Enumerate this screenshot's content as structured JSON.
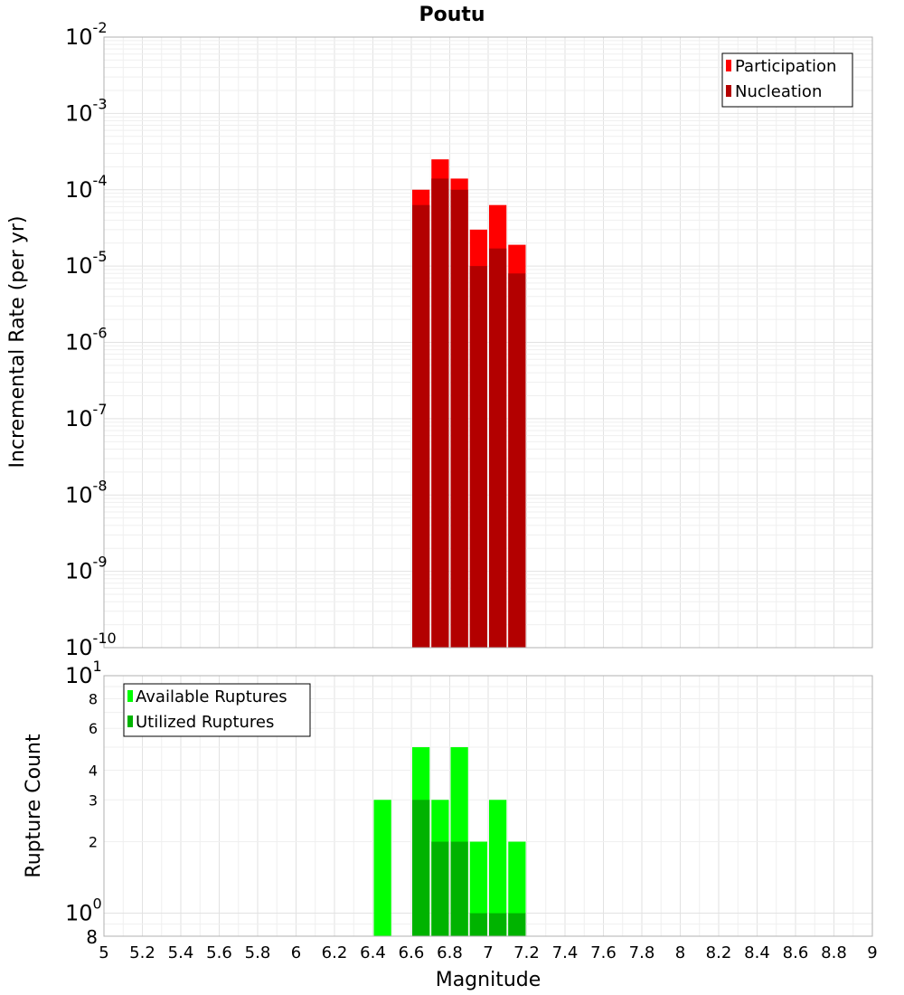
{
  "chart_data": [
    {
      "type": "bar",
      "panel": "top",
      "title": "Poutu",
      "xlabel": "",
      "ylabel": "Incremental Rate (per yr)",
      "yscale": "log",
      "xlim": [
        5,
        9
      ],
      "ylim": [
        1e-10,
        0.01
      ],
      "grid": true,
      "legend_position": "top-right",
      "bar_width": 0.1,
      "x": [
        6.65,
        6.75,
        6.85,
        6.95,
        7.05,
        7.15
      ],
      "series": [
        {
          "name": "Participation",
          "color": "#ff0000",
          "values": [
            0.0001,
            0.00025,
            0.00014,
            3e-05,
            6.3e-05,
            1.9e-05
          ]
        },
        {
          "name": "Nucleation",
          "color": "#b30000",
          "values": [
            6.3e-05,
            0.00014,
            0.0001,
            1e-05,
            1.7e-05,
            8e-06
          ]
        }
      ],
      "y_decade_ticks": [
        {
          "value": 0.01,
          "base": "10",
          "exp": "-2"
        },
        {
          "value": 0.001,
          "base": "10",
          "exp": "-3"
        },
        {
          "value": 0.0001,
          "base": "10",
          "exp": "-4"
        },
        {
          "value": 1e-05,
          "base": "10",
          "exp": "-5"
        },
        {
          "value": 1e-06,
          "base": "10",
          "exp": "-6"
        },
        {
          "value": 1e-07,
          "base": "10",
          "exp": "-7"
        },
        {
          "value": 1e-08,
          "base": "10",
          "exp": "-8"
        },
        {
          "value": 1e-09,
          "base": "10",
          "exp": "-9"
        },
        {
          "value": 1e-10,
          "base": "10",
          "exp": "-10"
        }
      ]
    },
    {
      "type": "bar",
      "panel": "bottom",
      "title": "",
      "xlabel": "Magnitude",
      "ylabel": "Rupture Count",
      "yscale": "log",
      "xlim": [
        5,
        9
      ],
      "ylim": [
        0.8,
        10
      ],
      "grid": true,
      "legend_position": "top-left",
      "bar_width": 0.1,
      "x_ticks": [
        "5",
        "5.2",
        "5.4",
        "5.6",
        "5.8",
        "6",
        "6.2",
        "6.4",
        "6.6",
        "6.8",
        "7",
        "7.2",
        "7.4",
        "7.6",
        "7.8",
        "8",
        "8.2",
        "8.4",
        "8.6",
        "8.8",
        "9"
      ],
      "series": [
        {
          "name": "Available Ruptures",
          "color": "#00ff00",
          "x": [
            6.45,
            6.65,
            6.75,
            6.85,
            6.95,
            7.05,
            7.15
          ],
          "values": [
            3,
            5,
            3,
            5,
            2,
            3,
            2
          ]
        },
        {
          "name": "Utilized Ruptures",
          "color": "#00b300",
          "x": [
            6.65,
            6.75,
            6.85,
            6.95,
            7.05,
            7.15
          ],
          "values": [
            3,
            2,
            2,
            1,
            1,
            1
          ]
        }
      ],
      "y_decade_ticks": [
        {
          "value": 10,
          "base": "10",
          "exp": "1"
        },
        {
          "value": 1,
          "base": "10",
          "exp": "0"
        }
      ],
      "y_minor_ticks": [
        {
          "value": 8,
          "label": "8"
        },
        {
          "value": 6,
          "label": "6"
        },
        {
          "value": 4,
          "label": "4"
        },
        {
          "value": 3,
          "label": "3"
        },
        {
          "value": 2,
          "label": "2"
        }
      ],
      "y_bottom_label": {
        "value": 0.8,
        "label": "8"
      }
    }
  ]
}
